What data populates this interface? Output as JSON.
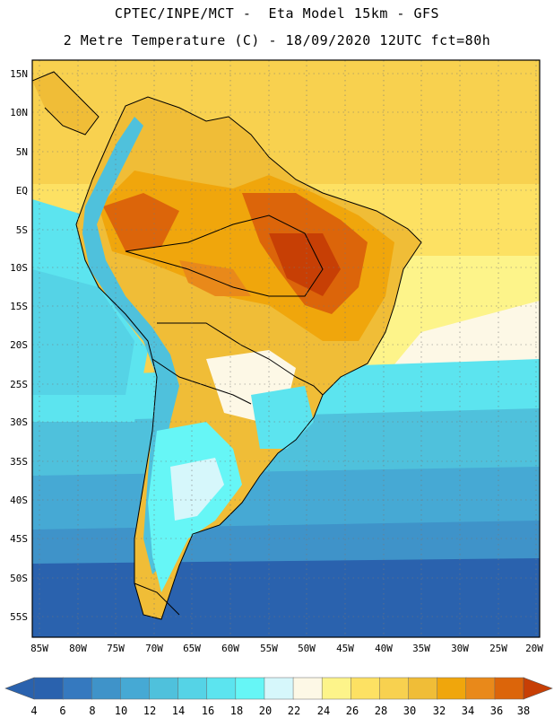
{
  "header": {
    "line1": "CPTEC/INPE/MCT -  Eta Model 15km - GFS",
    "line2": "2 Metre Temperature (C) - 18/09/2020 12UTC fct=80h"
  },
  "map": {
    "lat_labels": [
      "15N",
      "10N",
      "5N",
      "EQ",
      "5S",
      "10S",
      "15S",
      "20S",
      "25S",
      "30S",
      "35S",
      "40S",
      "45S",
      "50S",
      "55S"
    ],
    "lon_labels": [
      "85W",
      "80W",
      "75W",
      "70W",
      "65W",
      "60W",
      "55W",
      "50W",
      "45W",
      "40W",
      "35W",
      "30W",
      "25W",
      "20W"
    ],
    "lat_range": [
      15,
      -55
    ],
    "lon_range": [
      -85,
      -20
    ]
  },
  "colorbar": {
    "labels": [
      "4",
      "6",
      "8",
      "10",
      "12",
      "14",
      "16",
      "18",
      "20",
      "22",
      "24",
      "26",
      "28",
      "30",
      "32",
      "34",
      "36",
      "38"
    ],
    "colors": [
      "#2a62ae",
      "#3579bf",
      "#3f93c9",
      "#46a9d4",
      "#4fc1dc",
      "#55d3e6",
      "#5ce4ef",
      "#66f6f6",
      "#d6f7fb",
      "#fdf8e6",
      "#fdf48a",
      "#fde163",
      "#f8d14f",
      "#f0bd37",
      "#f0a60c",
      "#e9891a",
      "#dc650a",
      "#c73f05"
    ]
  }
}
